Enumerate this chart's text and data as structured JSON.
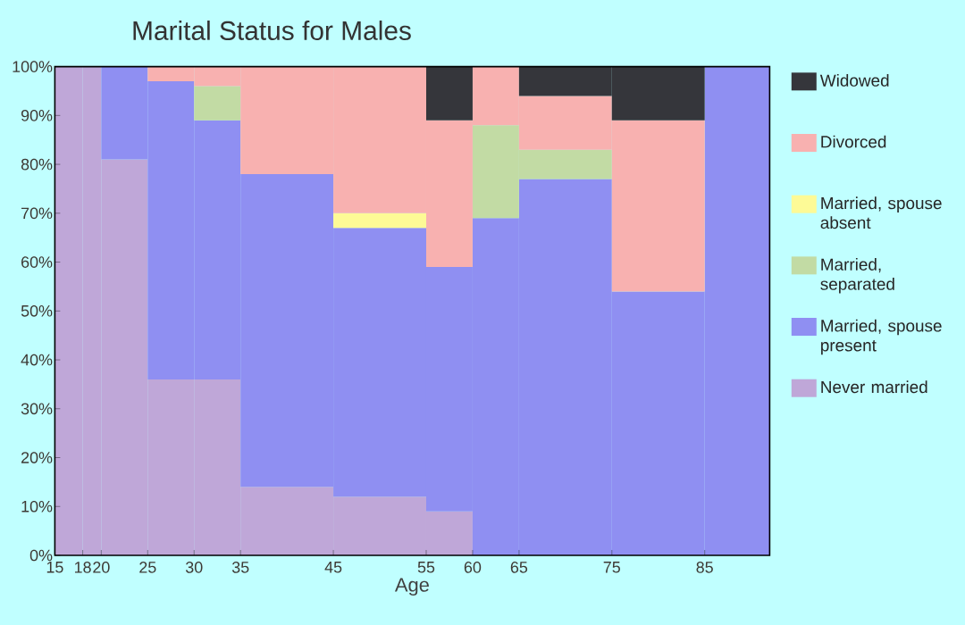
{
  "chart_data": {
    "type": "bar",
    "stacked": true,
    "title": "Marital Status for Males",
    "xlabel": "Age",
    "x": [
      16.5,
      19,
      22.5,
      27.5,
      32.5,
      40,
      50,
      57.5,
      62.5,
      70,
      80,
      88.5
    ],
    "xlim": [
      15,
      92
    ],
    "xticks": [
      15,
      18,
      20,
      25,
      30,
      35,
      45,
      55,
      60,
      65,
      75,
      85
    ],
    "ylim": [
      0,
      100
    ],
    "yticks": [
      {
        "value": 0,
        "label": "0%"
      },
      {
        "value": 10,
        "label": "10%"
      },
      {
        "value": 20,
        "label": "20%"
      },
      {
        "value": 30,
        "label": "30%"
      },
      {
        "value": 40,
        "label": "40%"
      },
      {
        "value": 50,
        "label": "50%"
      },
      {
        "value": 60,
        "label": "60%"
      },
      {
        "value": 70,
        "label": "70%"
      },
      {
        "value": 80,
        "label": "80%"
      },
      {
        "value": 90,
        "label": "90%"
      },
      {
        "value": 100,
        "label": "100%"
      }
    ],
    "legend": "right",
    "series": [
      {
        "name": "Never married",
        "color": "#bfa7d8",
        "values": [
          100,
          100,
          81,
          36,
          36,
          14,
          12,
          9,
          0,
          0,
          0,
          0
        ]
      },
      {
        "name": "Married, spouse present",
        "color": "#8f8ff2",
        "values": [
          0,
          0,
          19,
          61,
          53,
          64,
          55,
          50,
          69,
          77,
          54,
          100
        ]
      },
      {
        "name": "Married, separated",
        "color": "#c2dba4",
        "values": [
          0,
          0,
          0,
          0,
          7,
          0,
          0,
          0,
          19,
          6,
          0,
          0
        ]
      },
      {
        "name": "Married, spouse absent",
        "color": "#fdfa96",
        "values": [
          0,
          0,
          0,
          0,
          0,
          0,
          3,
          0,
          0,
          0,
          0,
          0
        ]
      },
      {
        "name": "Divorced",
        "color": "#f8b1b0",
        "values": [
          0,
          0,
          0,
          3,
          4,
          22,
          30,
          30,
          12,
          11,
          35,
          0
        ]
      },
      {
        "name": "Widowed",
        "color": "#35363b",
        "values": [
          0,
          0,
          0,
          0,
          0,
          0,
          0,
          11,
          0,
          6,
          11,
          0
        ]
      }
    ]
  }
}
